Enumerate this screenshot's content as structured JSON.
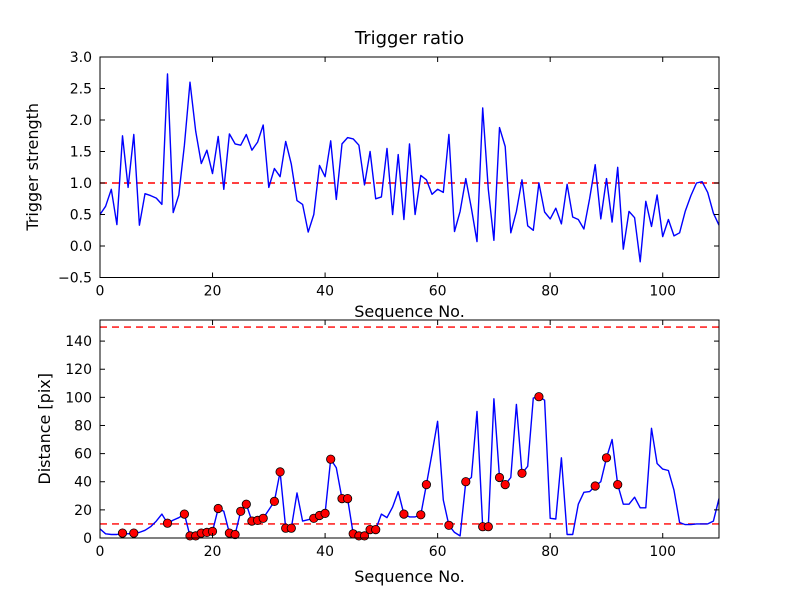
{
  "figure": {
    "background": "#ffffff",
    "text_color": "#000000"
  },
  "chart_data": [
    {
      "type": "line",
      "title": "Trigger ratio",
      "xlabel": "Sequence No.",
      "ylabel": "Trigger strength",
      "xlim": [
        0,
        110
      ],
      "ylim": [
        -0.5,
        3.0
      ],
      "x_is_index": true,
      "xticks": {
        "values": [
          0,
          20,
          40,
          60,
          80,
          100
        ],
        "labels": [
          "0",
          "20",
          "40",
          "60",
          "80",
          "100"
        ]
      },
      "yticks": {
        "values": [
          3.0,
          2.5,
          2.0,
          1.5,
          1.0,
          0.5,
          0.0,
          -0.5
        ],
        "labels": [
          "3.0",
          "2.5",
          "2.0",
          "1.5",
          "1.0",
          "0.5",
          "0.0",
          "−0.5"
        ]
      },
      "threshold_lines": [
        1.0
      ],
      "line_color": "#0000ff",
      "threshold_color": "#ff0000",
      "grid": false,
      "legend": null,
      "values": [
        0.5,
        0.63,
        0.9,
        0.34,
        1.75,
        0.93,
        1.77,
        0.33,
        0.83,
        0.8,
        0.76,
        0.66,
        2.73,
        0.53,
        0.81,
        1.6,
        2.6,
        1.82,
        1.31,
        1.52,
        1.15,
        1.74,
        0.9,
        1.78,
        1.62,
        1.6,
        1.77,
        1.52,
        1.65,
        1.92,
        0.93,
        1.23,
        1.1,
        1.66,
        1.3,
        0.72,
        0.66,
        0.22,
        0.5,
        1.28,
        1.1,
        1.67,
        0.74,
        1.62,
        1.72,
        1.7,
        1.6,
        0.97,
        1.5,
        0.75,
        0.78,
        1.55,
        0.5,
        1.45,
        0.42,
        1.62,
        0.5,
        1.12,
        1.05,
        0.82,
        0.9,
        0.85,
        1.77,
        0.23,
        0.55,
        1.07,
        0.6,
        0.07,
        2.19,
        0.9,
        0.09,
        1.88,
        1.58,
        0.21,
        0.55,
        1.05,
        0.32,
        0.25,
        1.0,
        0.54,
        0.43,
        0.6,
        0.35,
        0.98,
        0.46,
        0.42,
        0.27,
        0.75,
        1.29,
        0.43,
        1.07,
        0.38,
        1.25,
        -0.05,
        0.55,
        0.45,
        -0.25,
        0.71,
        0.31,
        0.81,
        0.15,
        0.42,
        0.16,
        0.21,
        0.55,
        0.8,
        1.0,
        1.02,
        0.85,
        0.52,
        0.33
      ]
    },
    {
      "type": "line",
      "title": "",
      "xlabel": "Sequence No.",
      "ylabel": "Distance [pix]",
      "xlim": [
        0,
        110
      ],
      "ylim": [
        0,
        155
      ],
      "x_is_index": true,
      "xticks": {
        "values": [
          0,
          20,
          40,
          60,
          80,
          100
        ],
        "labels": [
          "0",
          "20",
          "40",
          "60",
          "80",
          "100"
        ]
      },
      "yticks": {
        "values": [
          0,
          20,
          40,
          60,
          80,
          100,
          120,
          140
        ],
        "labels": [
          "0",
          "20",
          "40",
          "60",
          "80",
          "100",
          "120",
          "140"
        ]
      },
      "threshold_lines": [
        150,
        10
      ],
      "line_color": "#0000ff",
      "threshold_color": "#ff0000",
      "marker_color": "#ff0000",
      "marker_edge_color": "#000000",
      "grid": false,
      "legend": null,
      "values": [
        6.5,
        3,
        2.5,
        2.5,
        3.5,
        3,
        3.5,
        4,
        5.5,
        8,
        12,
        17,
        10.5,
        12.7,
        14.4,
        17,
        1.5,
        1.5,
        3.5,
        4,
        4.7,
        21,
        19,
        3.5,
        2.5,
        19,
        24,
        12,
        12.5,
        14,
        20,
        26,
        47,
        7,
        7,
        32,
        12,
        13,
        14,
        16,
        17.5,
        56,
        50,
        28,
        28,
        3,
        1.5,
        1.5,
        6,
        6,
        17,
        14.5,
        22,
        33,
        17,
        15,
        15,
        16.5,
        38,
        60,
        83,
        27,
        9,
        4,
        1.5,
        40,
        43,
        90,
        8,
        8,
        99,
        43,
        38,
        43,
        95,
        46,
        51,
        99.5,
        100.5,
        98,
        14,
        13.5,
        57,
        2.5,
        2.5,
        24,
        32.5,
        33,
        37,
        40,
        57,
        70,
        38,
        24,
        24,
        29,
        21.5,
        21.5,
        78,
        53,
        49,
        48,
        34,
        11,
        9.5,
        9.5,
        10,
        10,
        10,
        12,
        28
      ],
      "marker_x": [
        4,
        6,
        12,
        15,
        16,
        17,
        18,
        19,
        20,
        21,
        23,
        24,
        25,
        26,
        27,
        28,
        29,
        31,
        32,
        33,
        34,
        38,
        39,
        40,
        41,
        43,
        44,
        45,
        46,
        47,
        48,
        49,
        54,
        57,
        58,
        62,
        65,
        68,
        69,
        71,
        72,
        75,
        78,
        88,
        90,
        92
      ]
    }
  ]
}
